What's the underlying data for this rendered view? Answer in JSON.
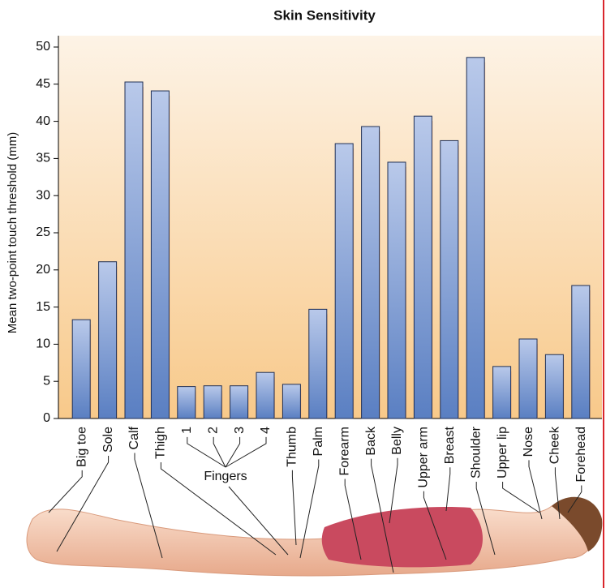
{
  "chart_data": {
    "type": "bar",
    "title": "Skin Sensitivity",
    "y_label": "Mean two-point touch threshold (mm)",
    "annotation": "Fingers",
    "categories": [
      "Big toe",
      "Sole",
      "Calf",
      "Thigh",
      "1",
      "2",
      "3",
      "4",
      "Thumb",
      "Palm",
      "Forearm",
      "Back",
      "Belly",
      "Upper arm",
      "Breast",
      "Shoulder",
      "Upper lip",
      "Nose",
      "Cheek",
      "Forehead"
    ],
    "values": [
      13.3,
      21.1,
      45.3,
      44.1,
      4.3,
      4.4,
      4.4,
      6.2,
      4.6,
      14.7,
      37.0,
      39.3,
      34.5,
      40.7,
      37.4,
      48.6,
      7.0,
      10.7,
      8.6,
      17.9
    ],
    "color": "#6f8fcb",
    "ylim": [
      0,
      50
    ],
    "yticks": [
      0,
      5,
      10,
      15,
      20,
      25,
      30,
      35,
      40,
      45,
      50
    ],
    "grid": false
  }
}
